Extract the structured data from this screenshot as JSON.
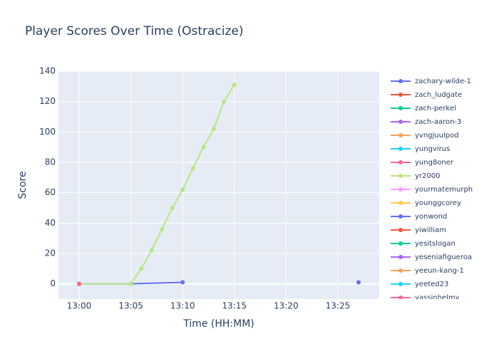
{
  "chart_data": {
    "type": "line",
    "title": "Player Scores Over Time (Ostracize)",
    "x_label": "Time (HH:MM)",
    "y_label": "Score",
    "xlim": [
      "12:58",
      "13:29"
    ],
    "xticks": [
      "13:00",
      "13:05",
      "13:10",
      "13:15",
      "13:20",
      "13:25"
    ],
    "ylim": [
      -10,
      140
    ],
    "yticks": [
      0,
      20,
      40,
      60,
      80,
      100,
      120,
      140
    ],
    "grid": true,
    "legend": "right",
    "series": [
      {
        "name": "zachary-wilde-1",
        "color": "#636efa",
        "x": [
          "13:00",
          "13:05",
          "13:10"
        ],
        "values": [
          0,
          0,
          1
        ]
      },
      {
        "name": "zach_ludgate",
        "color": "#EF553B",
        "x": [
          "13:00"
        ],
        "values": [
          0
        ]
      },
      {
        "name": "zach-perkel",
        "color": "#00cc96",
        "x": [
          "13:00"
        ],
        "values": [
          0
        ]
      },
      {
        "name": "zach-aaron-3",
        "color": "#ab63fa",
        "x": [
          "13:00"
        ],
        "values": [
          0
        ]
      },
      {
        "name": "yvngjuulpod",
        "color": "#FFA15A",
        "x": [
          "13:00"
        ],
        "values": [
          0
        ]
      },
      {
        "name": "yungvirus",
        "color": "#19d3f3",
        "x": [
          "13:00"
        ],
        "values": [
          0
        ]
      },
      {
        "name": "yung8oner",
        "color": "#FF6692",
        "x": [
          "13:00"
        ],
        "values": [
          0
        ]
      },
      {
        "name": "yr2000",
        "color": "#B6E880",
        "x": [
          "13:00",
          "13:05",
          "13:06",
          "13:07",
          "13:08",
          "13:09",
          "13:10",
          "13:11",
          "13:12",
          "13:13",
          "13:14",
          "13:15"
        ],
        "values": [
          0,
          0,
          10,
          22,
          36,
          50,
          62,
          76,
          90,
          102,
          120,
          131
        ]
      },
      {
        "name": "yourmatemurph",
        "color": "#FF97FF",
        "x": [
          "13:00"
        ],
        "values": [
          0
        ]
      },
      {
        "name": "younggcorey",
        "color": "#FECB52",
        "x": [
          "13:00"
        ],
        "values": [
          0
        ]
      },
      {
        "name": "yonwond",
        "color": "#636efa",
        "x": [
          "13:27"
        ],
        "values": [
          1
        ]
      },
      {
        "name": "yiwilliam",
        "color": "#EF553B",
        "x": [
          "13:00"
        ],
        "values": [
          0
        ]
      },
      {
        "name": "yesitslogan",
        "color": "#00cc96",
        "x": [
          "13:00"
        ],
        "values": [
          0
        ]
      },
      {
        "name": "yeseniafigueroa",
        "color": "#ab63fa",
        "x": [
          "13:00"
        ],
        "values": [
          0
        ]
      },
      {
        "name": "yeeun-kang-1",
        "color": "#FFA15A",
        "x": [
          "13:00"
        ],
        "values": [
          0
        ]
      },
      {
        "name": "yeeted23",
        "color": "#19d3f3",
        "x": [
          "13:00"
        ],
        "values": [
          0
        ]
      },
      {
        "name": "yassinhelmy",
        "color": "#FF6692",
        "x": [
          "13:00"
        ],
        "values": [
          0
        ]
      }
    ]
  }
}
